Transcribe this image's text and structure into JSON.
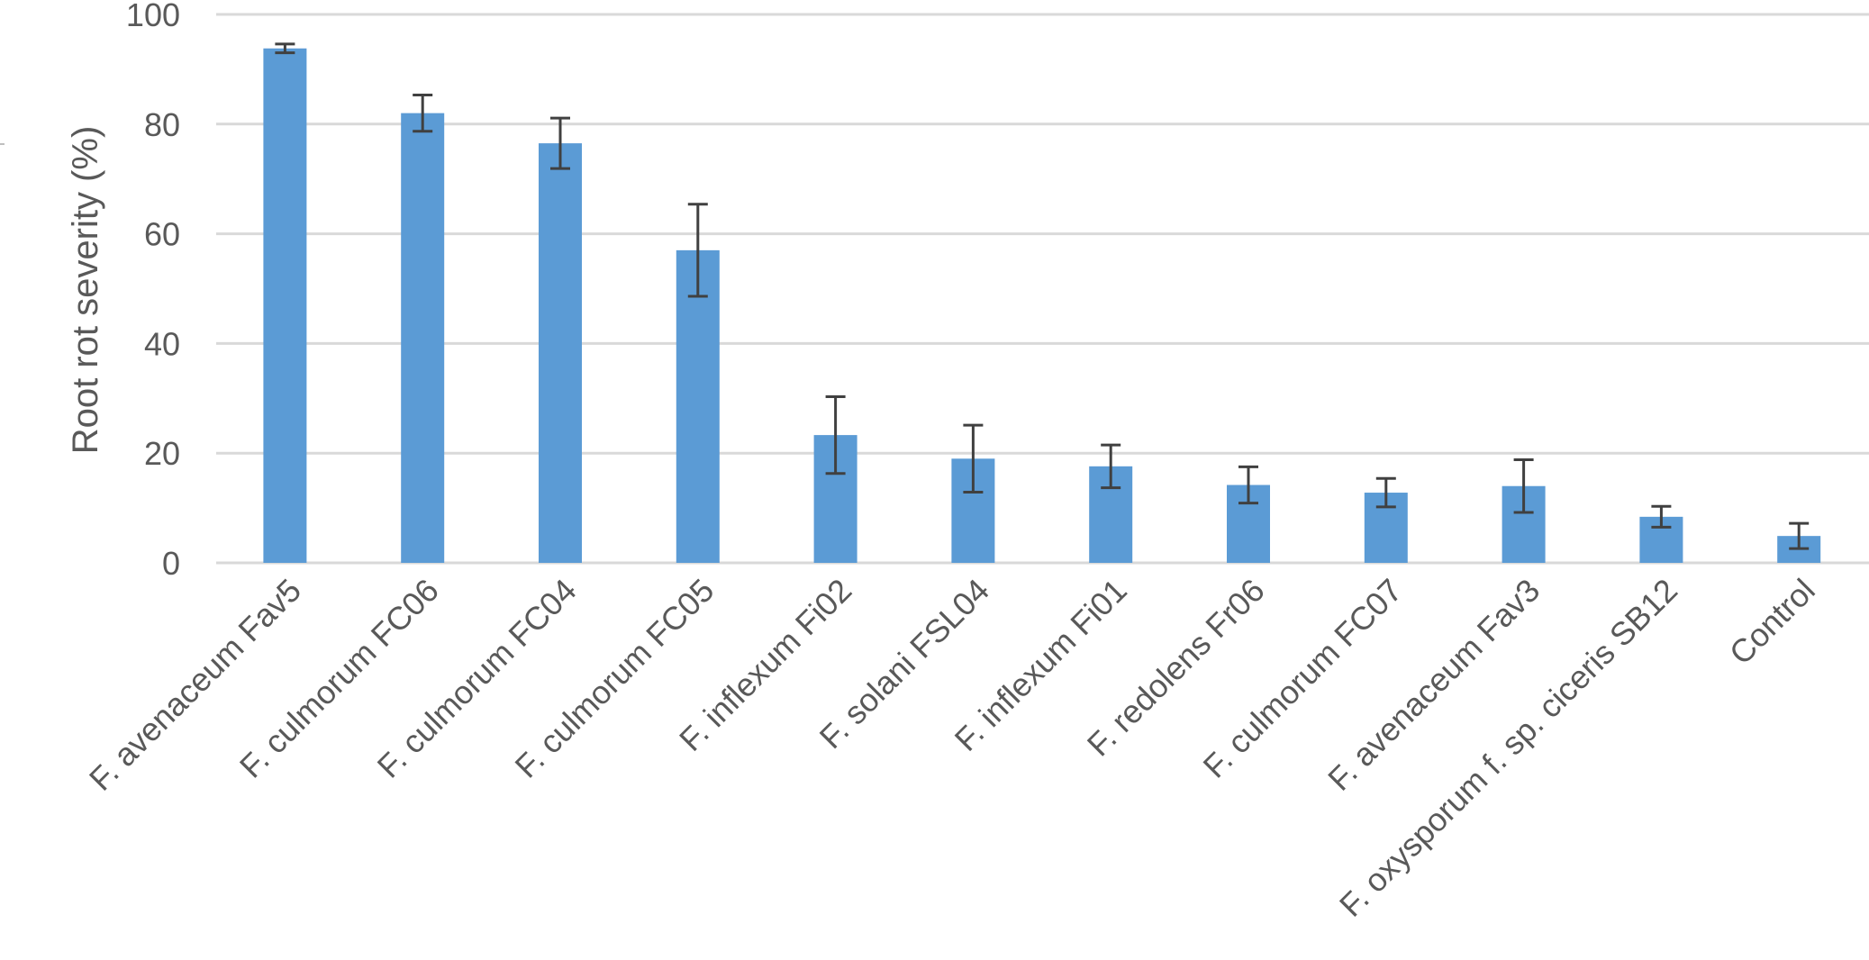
{
  "chart_data": {
    "type": "bar",
    "ylabel": "Root rot severity (%)",
    "xlabel": "",
    "ylim": [
      0,
      100
    ],
    "yticks": [
      0,
      20,
      40,
      60,
      80,
      100
    ],
    "grid": true,
    "legend": "none",
    "bar_color": "#5b9bd5",
    "grid_color": "#d9d9d9",
    "errorbar_color": "#404040",
    "categories": [
      "F. avenaceum Fav5",
      "F. culmorum FC06",
      "F. culmorum FC04",
      "F. culmorum FC05",
      "F. inflexum Fi02",
      "F. solani FSL04",
      "F. inflexum Fi01",
      "F. redolens Fr06",
      "F. culmorum FC07",
      "F. avenaceum Fav3",
      "F. oxysporum f. sp. ciceris SB12",
      "Control"
    ],
    "values": [
      93.8,
      82.0,
      76.5,
      57.0,
      23.3,
      19.0,
      17.6,
      14.2,
      12.8,
      14.0,
      8.4,
      4.9
    ],
    "error": [
      0.8,
      3.3,
      4.6,
      8.4,
      7.0,
      6.1,
      3.9,
      3.3,
      2.6,
      4.8,
      1.9,
      2.3
    ]
  }
}
